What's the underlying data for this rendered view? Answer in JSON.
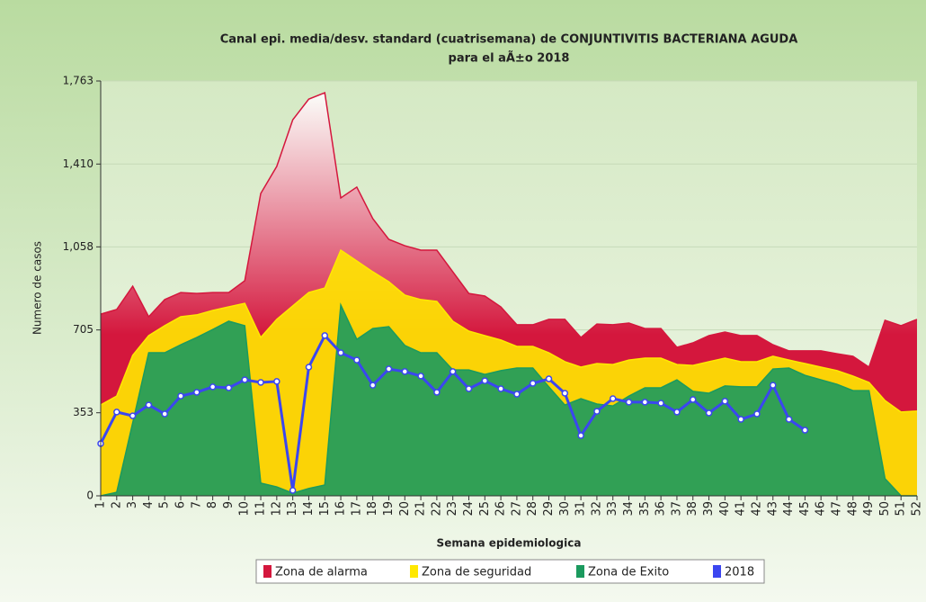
{
  "chart_data": {
    "type": "area",
    "title": [
      "Canal epi. media/desv. standard (cuatrisemana) de CONJUNTIVITIS BACTERIANA AGUDA",
      "para el aÃ±o 2018"
    ],
    "x_label": "Semana epidemiologica",
    "y_label": "Numero de casos",
    "categories": [
      "1",
      "2",
      "3",
      "4",
      "5",
      "6",
      "7",
      "8",
      "9",
      "10",
      "11",
      "12",
      "13",
      "14",
      "15",
      "16",
      "17",
      "18",
      "19",
      "20",
      "21",
      "22",
      "23",
      "24",
      "25",
      "26",
      "27",
      "28",
      "29",
      "30",
      "31",
      "32",
      "33",
      "34",
      "35",
      "36",
      "37",
      "38",
      "39",
      "40",
      "41",
      "42",
      "43",
      "44",
      "45",
      "46",
      "47",
      "48",
      "49",
      "50",
      "51",
      "52"
    ],
    "ylim": [
      0,
      1763
    ],
    "yticks": [
      0,
      353,
      705,
      {
        "value": 1058,
        "label": "1,058"
      },
      {
        "value": 1410,
        "label": "1,410"
      },
      {
        "value": 1763,
        "label": "1,763"
      }
    ],
    "grid": true,
    "legend": "bottom",
    "series": [
      {
        "name": "Zona de alarma",
        "type": "area",
        "color": "#d4173d",
        "values": [
          772,
          792,
          891,
          761,
          834,
          864,
          860,
          864,
          864,
          914,
          1285,
          1400,
          1598,
          1686,
          1713,
          1266,
          1312,
          1178,
          1090,
          1063,
          1044,
          1044,
          952,
          860,
          849,
          803,
          727,
          727,
          750,
          750,
          673,
          730,
          727,
          734,
          711,
          711,
          631,
          650,
          681,
          696,
          681,
          681,
          642,
          616,
          616,
          616,
          604,
          593,
          547,
          746,
          723,
          750
        ]
      },
      {
        "name": "Zona de seguridad",
        "type": "area",
        "color": "#ffe800",
        "values": [
          386,
          424,
          597,
          681,
          723,
          761,
          769,
          788,
          803,
          818,
          673,
          750,
          807,
          864,
          883,
          1044,
          998,
          952,
          910,
          853,
          834,
          826,
          742,
          700,
          681,
          662,
          635,
          635,
          608,
          570,
          547,
          562,
          558,
          577,
          585,
          585,
          558,
          554,
          570,
          585,
          570,
          570,
          593,
          577,
          562,
          547,
          532,
          509,
          482,
          405,
          356,
          360
        ]
      },
      {
        "name": "Zona de Exito",
        "type": "area",
        "color": "#1b9a5e",
        "values": [
          0,
          15,
          310,
          608,
          608,
          642,
          673,
          707,
          742,
          723,
          54,
          38,
          11,
          31,
          46,
          811,
          665,
          711,
          719,
          639,
          608,
          608,
          535,
          535,
          516,
          532,
          543,
          543,
          463,
          386,
          413,
          390,
          382,
          424,
          459,
          459,
          493,
          444,
          436,
          467,
          463,
          463,
          539,
          543,
          512,
          493,
          474,
          447,
          447,
          73,
          0,
          0
        ]
      },
      {
        "name": "2018",
        "type": "line",
        "color": "#3b46f0",
        "values": [
          222,
          356,
          340,
          386,
          348,
          424,
          440,
          463,
          459,
          493,
          482,
          486,
          23,
          547,
          681,
          608,
          577,
          470,
          539,
          528,
          509,
          440,
          528,
          455,
          489,
          455,
          432,
          478,
          497,
          436,
          256,
          359,
          413,
          398,
          398,
          394,
          356,
          409,
          352,
          402,
          325,
          348,
          470,
          325,
          279,
          null,
          null,
          null,
          null,
          null,
          null,
          null
        ]
      }
    ]
  }
}
